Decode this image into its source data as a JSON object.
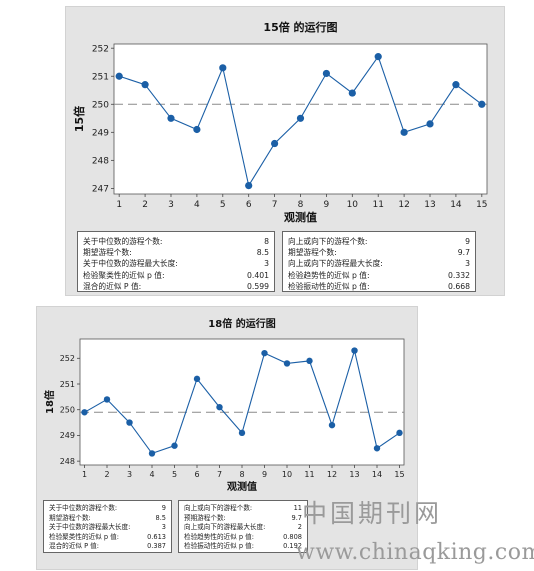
{
  "chart_data": [
    {
      "type": "line",
      "title": "15倍 的运行图",
      "xlabel": "观测值",
      "ylabel": "15倍",
      "x": [
        1,
        2,
        3,
        4,
        5,
        6,
        7,
        8,
        9,
        10,
        11,
        12,
        13,
        14,
        15
      ],
      "values": [
        251.0,
        250.7,
        249.5,
        249.1,
        251.3,
        247.1,
        248.6,
        249.5,
        251.1,
        250.4,
        251.7,
        249.0,
        249.3,
        250.7,
        250.0
      ],
      "median": 250.0,
      "yticks": [
        247,
        248,
        249,
        250,
        251,
        252
      ],
      "ylim": [
        246.8,
        252.15
      ],
      "xlim": [
        0.8,
        15.2
      ],
      "line_color": "#1b5fa6",
      "median_color": "#8a8a8a",
      "stats": {
        "left": [
          {
            "label": "关于中位数的游程个数:",
            "value": "8"
          },
          {
            "label": "期望游程个数:",
            "value": "8.5"
          },
          {
            "label": "关于中位数的游程最大长度:",
            "value": "3"
          },
          {
            "label": "检验聚类性的近似 p 值:",
            "value": "0.401"
          },
          {
            "label": "混合的近似 P 值:",
            "value": "0.599"
          }
        ],
        "right": [
          {
            "label": "向上或向下的游程个数:",
            "value": "9"
          },
          {
            "label": "期望游程个数:",
            "value": "9.7"
          },
          {
            "label": "向上或向下的游程最大长度:",
            "value": "3"
          },
          {
            "label": "检验趋势性的近似 p 值:",
            "value": "0.332"
          },
          {
            "label": "检验振动性的近似 p 值:",
            "value": "0.668"
          }
        ]
      }
    },
    {
      "type": "line",
      "title": "18倍 的运行图",
      "xlabel": "观测值",
      "ylabel": "18倍",
      "x": [
        1,
        2,
        3,
        4,
        5,
        6,
        7,
        8,
        9,
        10,
        11,
        12,
        13,
        14,
        15
      ],
      "values": [
        249.9,
        250.4,
        249.5,
        248.3,
        248.6,
        251.2,
        250.1,
        249.1,
        252.2,
        251.8,
        251.9,
        249.4,
        252.3,
        248.5,
        249.1
      ],
      "median": 249.9,
      "yticks": [
        248,
        249,
        250,
        251,
        252
      ],
      "ylim": [
        247.85,
        252.75
      ],
      "xlim": [
        0.8,
        15.2
      ],
      "line_color": "#1b5fa6",
      "median_color": "#8a8a8a",
      "stats": {
        "left": [
          {
            "label": "关于中位数的游程个数:",
            "value": "9"
          },
          {
            "label": "期望游程个数:",
            "value": "8.5"
          },
          {
            "label": "关于中位数的游程最大长度:",
            "value": "3"
          },
          {
            "label": "检验聚类性的近似 p 值:",
            "value": "0.613"
          },
          {
            "label": "混合的近似 P 值:",
            "value": "0.387"
          }
        ],
        "right": [
          {
            "label": "向上或向下的游程个数:",
            "value": "11"
          },
          {
            "label": "预期游程个数:",
            "value": "9.7"
          },
          {
            "label": "向上或向下的游程最大长度:",
            "value": "2"
          },
          {
            "label": "检验趋势性的近似 p 值:",
            "value": "0.808"
          },
          {
            "label": "检验振动性的近似 p 值:",
            "value": "0.192"
          }
        ]
      }
    }
  ],
  "watermark": {
    "brand": "中国期刊网",
    "url": "www.chinaqking.com"
  }
}
